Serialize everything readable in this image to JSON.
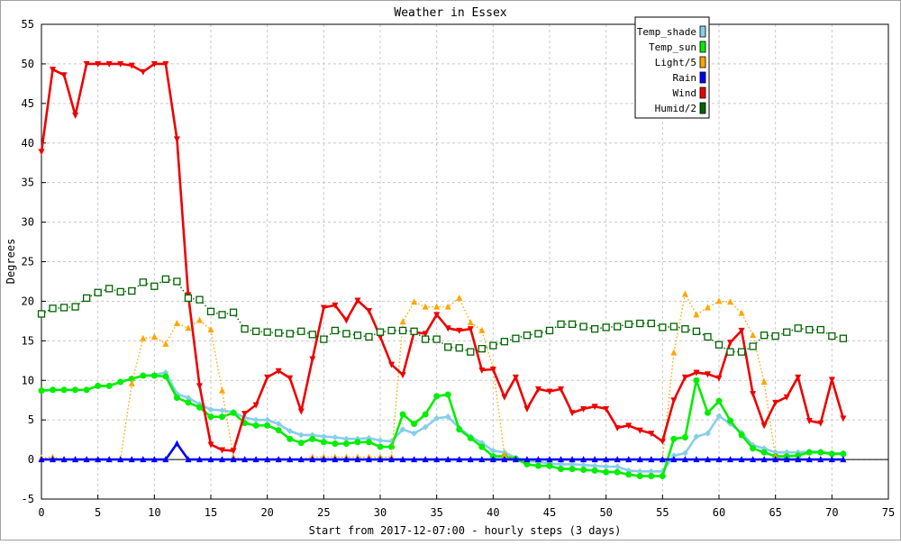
{
  "chart_data": {
    "type": "line",
    "title": "Weather in Essex",
    "xlabel": "Start from 2017-12-07:00 - hourly steps (3 days)",
    "ylabel": "Degrees",
    "xlim": [
      0,
      75
    ],
    "ylim": [
      -5,
      55
    ],
    "xticks": [
      0,
      5,
      10,
      15,
      20,
      25,
      30,
      35,
      40,
      45,
      50,
      55,
      60,
      65,
      70,
      75
    ],
    "yticks": [
      -5,
      0,
      5,
      10,
      15,
      20,
      25,
      30,
      35,
      40,
      45,
      50,
      55
    ],
    "grid": true,
    "legend_position": "top-right",
    "series": [
      {
        "name": "Temp_shade",
        "color": "#87ceeb",
        "marker": "diamond",
        "style": "solid",
        "values": [
          8.7,
          8.8,
          8.8,
          8.8,
          8.8,
          9.3,
          9.3,
          9.8,
          10.2,
          10.6,
          10.7,
          11.0,
          8.3,
          7.8,
          7.0,
          6.3,
          6.2,
          6.0,
          5.3,
          5.0,
          5.0,
          4.5,
          3.6,
          3.1,
          3.1,
          2.9,
          2.8,
          2.6,
          2.6,
          2.7,
          2.4,
          2.3,
          3.8,
          3.3,
          4.1,
          5.2,
          5.4,
          4.0,
          2.9,
          2.1,
          1.1,
          0.9,
          0.2,
          -0.2,
          -0.3,
          -0.5,
          -0.6,
          -0.6,
          -0.7,
          -0.8,
          -0.9,
          -0.9,
          -1.4,
          -1.5,
          -1.5,
          -1.5,
          0.5,
          0.8,
          2.9,
          3.3,
          5.5,
          4.5,
          3.4,
          1.8,
          1.4,
          0.9,
          0.9,
          0.9,
          1.0,
          1.0,
          0.8,
          0.8
        ]
      },
      {
        "name": "Temp_sun",
        "color": "#00ee00",
        "marker": "circle",
        "style": "solid",
        "values": [
          8.7,
          8.8,
          8.8,
          8.8,
          8.8,
          9.3,
          9.3,
          9.8,
          10.2,
          10.6,
          10.6,
          10.5,
          7.8,
          7.2,
          6.6,
          5.4,
          5.4,
          5.9,
          4.6,
          4.3,
          4.3,
          3.7,
          2.6,
          2.1,
          2.6,
          2.2,
          2.0,
          2.0,
          2.2,
          2.2,
          1.6,
          1.6,
          5.7,
          4.5,
          5.7,
          8.0,
          8.2,
          3.8,
          2.7,
          1.6,
          0.4,
          0.4,
          0.1,
          -0.6,
          -0.8,
          -0.8,
          -1.2,
          -1.2,
          -1.3,
          -1.4,
          -1.6,
          -1.6,
          -1.9,
          -2.1,
          -2.1,
          -2.1,
          2.6,
          2.8,
          10.0,
          5.9,
          7.4,
          4.9,
          3.1,
          1.4,
          0.9,
          0.4,
          0.4,
          0.5,
          0.9,
          0.9,
          0.7,
          0.7
        ]
      },
      {
        "name": "Light/5",
        "color": "#ffa500",
        "marker": "triangle-up",
        "style": "dotted",
        "values": [
          0.2,
          0.3,
          0,
          0,
          0,
          0,
          0,
          0,
          9.6,
          15.3,
          15.5,
          14.6,
          17.2,
          16.6,
          17.6,
          16.4,
          8.7,
          0.3,
          0,
          0,
          0,
          0,
          0,
          0,
          0.3,
          0.3,
          0.3,
          0.3,
          0.3,
          0.3,
          0.3,
          0.3,
          17.4,
          19.9,
          19.3,
          19.3,
          19.3,
          20.4,
          17.3,
          16.3,
          11.6,
          0.6,
          0,
          0,
          0,
          0,
          0,
          0,
          0,
          0,
          0,
          0,
          0,
          0,
          0,
          0,
          13.5,
          20.9,
          18.3,
          19.2,
          20.0,
          19.9,
          18.5,
          15.7,
          9.8,
          0.3,
          0,
          0,
          0,
          0,
          0,
          0
        ]
      },
      {
        "name": "Rain",
        "color": "#0000ff",
        "marker": "triangle-up",
        "style": "solid",
        "values": [
          0,
          0,
          0,
          0,
          0,
          0,
          0,
          0,
          0,
          0,
          0,
          0,
          2.0,
          0,
          0,
          0,
          0,
          0,
          0,
          0,
          0,
          0,
          0,
          0,
          0,
          0,
          0,
          0,
          0,
          0,
          0,
          0,
          0,
          0,
          0,
          0,
          0,
          0,
          0,
          0,
          0,
          0,
          0,
          0,
          0,
          0,
          0,
          0,
          0,
          0,
          0,
          0,
          0,
          0,
          0,
          0,
          0,
          0,
          0,
          0,
          0,
          0,
          0,
          0,
          0,
          0,
          0,
          0,
          0,
          0,
          0,
          0
        ]
      },
      {
        "name": "Wind",
        "color": "#ee0000",
        "marker": "triangle-down",
        "style": "solid",
        "values": [
          38.9,
          49.3,
          48.6,
          43.5,
          50.0,
          50.0,
          50.0,
          50.0,
          49.8,
          49.0,
          50.0,
          50.0,
          40.5,
          20.8,
          9.3,
          1.9,
          1.2,
          1.1,
          5.8,
          6.9,
          10.4,
          11.2,
          10.3,
          6.1,
          12.7,
          19.2,
          19.5,
          17.6,
          20.1,
          18.8,
          15.5,
          12.0,
          10.7,
          16.1,
          15.9,
          18.3,
          16.6,
          16.3,
          16.5,
          11.3,
          11.4,
          7.9,
          10.4,
          6.4,
          8.9,
          8.6,
          8.9,
          5.9,
          6.4,
          6.7,
          6.4,
          4.0,
          4.3,
          3.7,
          3.3,
          2.3,
          7.5,
          10.4,
          11.0,
          10.8,
          10.3,
          14.8,
          16.3,
          8.3,
          4.3,
          7.2,
          7.9,
          10.4,
          4.9,
          4.6,
          10.1,
          5.2
        ]
      },
      {
        "name": "Humid/2",
        "color": "#006400",
        "marker": "square-hollow",
        "style": "dotted",
        "values": [
          18.4,
          19.1,
          19.2,
          19.3,
          20.4,
          21.1,
          21.6,
          21.2,
          21.3,
          22.4,
          21.9,
          22.8,
          22.5,
          20.4,
          20.2,
          18.7,
          18.3,
          18.6,
          16.5,
          16.2,
          16.1,
          16.0,
          15.9,
          16.2,
          15.8,
          15.2,
          16.3,
          15.9,
          15.7,
          15.5,
          16.1,
          16.3,
          16.3,
          16.2,
          15.2,
          15.2,
          14.2,
          14.1,
          13.6,
          14.0,
          14.4,
          14.9,
          15.3,
          15.7,
          15.9,
          16.3,
          17.1,
          17.1,
          16.8,
          16.5,
          16.7,
          16.8,
          17.1,
          17.2,
          17.2,
          16.7,
          16.8,
          16.5,
          16.2,
          15.5,
          14.5,
          13.6,
          13.6,
          14.3,
          15.7,
          15.6,
          16.1,
          16.6,
          16.4,
          16.4,
          15.6,
          15.3
        ]
      }
    ]
  }
}
